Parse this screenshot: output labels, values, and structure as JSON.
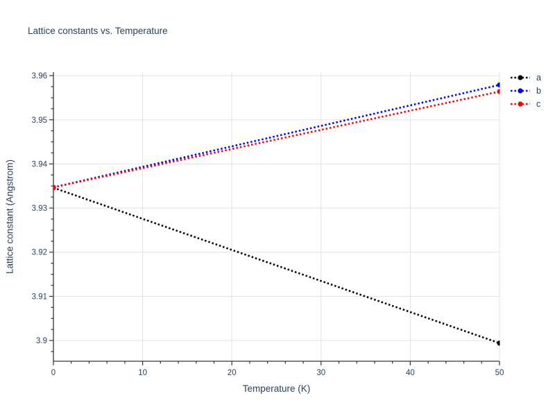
{
  "chart_data": {
    "type": "line",
    "title": "Lattice constants vs. Temperature",
    "xlabel": "Temperature (K)",
    "ylabel": "Lattice constant (Angstrom)",
    "xlim": [
      0,
      50
    ],
    "ylim": [
      3.8953,
      3.9608
    ],
    "x_ticks": {
      "values": [
        0,
        10,
        20,
        30,
        40,
        50
      ],
      "labels": [
        "0",
        "10",
        "20",
        "30",
        "40",
        "50"
      ],
      "minor_step": 2
    },
    "y_ticks": {
      "values": [
        3.9,
        3.91,
        3.92,
        3.93,
        3.94,
        3.95,
        3.96
      ],
      "labels": [
        "3.9",
        "3.91",
        "3.92",
        "3.93",
        "3.94",
        "3.95",
        "3.96"
      ],
      "minor_step": 0.0025
    },
    "grid": true,
    "line_style": "dotted",
    "marker": "circle",
    "legend_position": "outside-top-right",
    "series": [
      {
        "name": "a",
        "color": "#000000",
        "points": [
          [
            0,
            3.9346
          ],
          [
            50,
            3.8994
          ]
        ]
      },
      {
        "name": "b",
        "color": "#0000ff",
        "points": [
          [
            0,
            3.9347
          ],
          [
            50,
            3.9579
          ]
        ]
      },
      {
        "name": "c",
        "color": "#ff0000",
        "points": [
          [
            0,
            3.9347
          ],
          [
            50,
            3.9564
          ]
        ]
      }
    ],
    "colors": {
      "text": "#2a3f5f",
      "grid": "#e3e3e3",
      "spine": "#333333",
      "background": "#ffffff"
    }
  }
}
